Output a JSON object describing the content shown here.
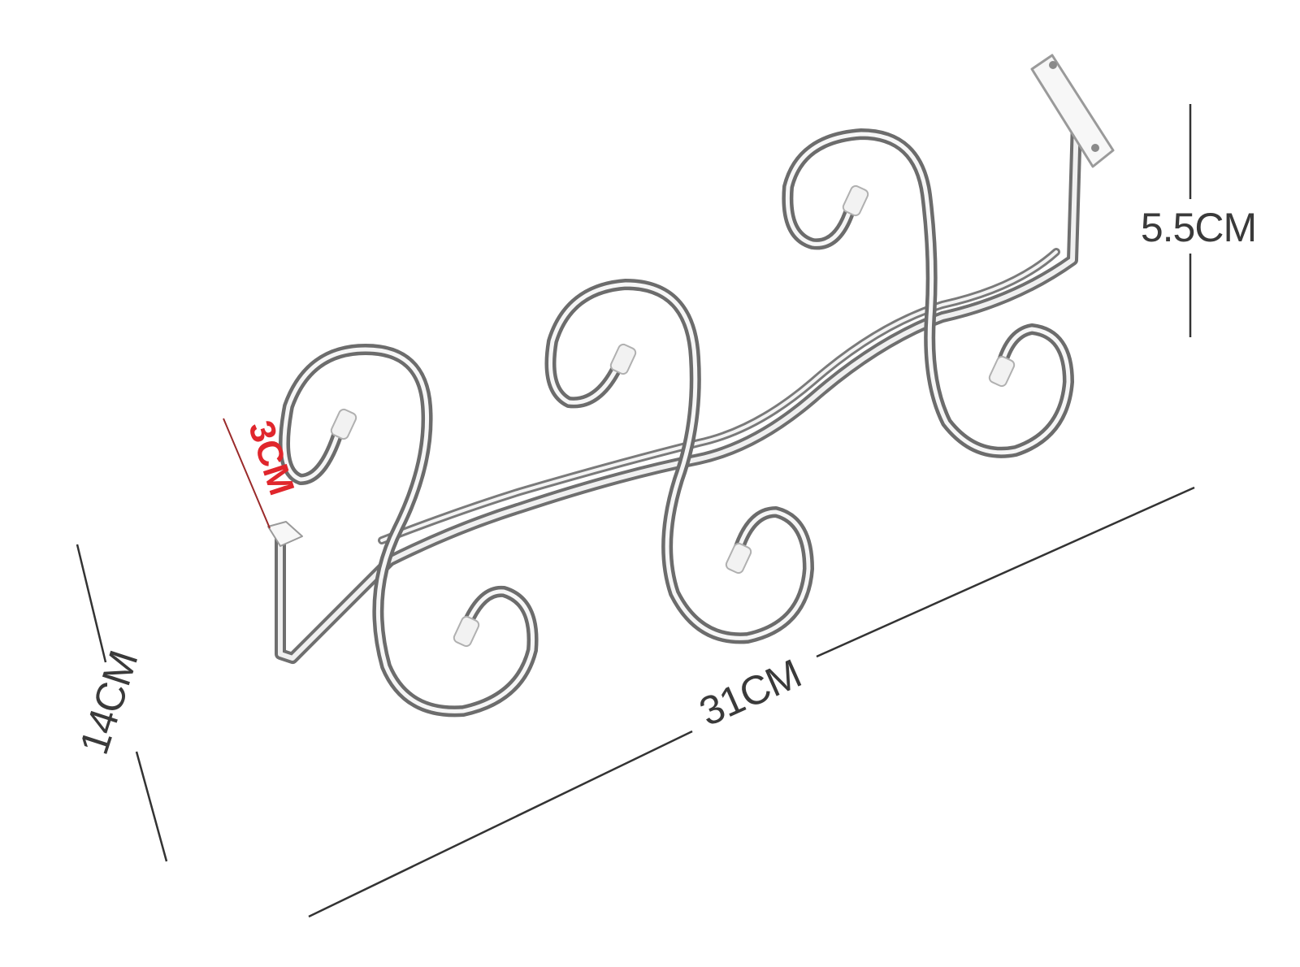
{
  "product": {
    "name_icon": "s-hook-wall-rack-photo"
  },
  "dimensions": {
    "height_label": "14CM",
    "length_label": "31CM",
    "depth_label": "5.5CM",
    "bracket_label": "3CM"
  },
  "colors": {
    "metal": "#c9c9c9",
    "metal_highlight": "#f7f7f7",
    "metal_shadow": "#7d7d7d",
    "dim_line": "#333333",
    "dim_text": "#3a3a3a",
    "accent": "#e0262c"
  }
}
